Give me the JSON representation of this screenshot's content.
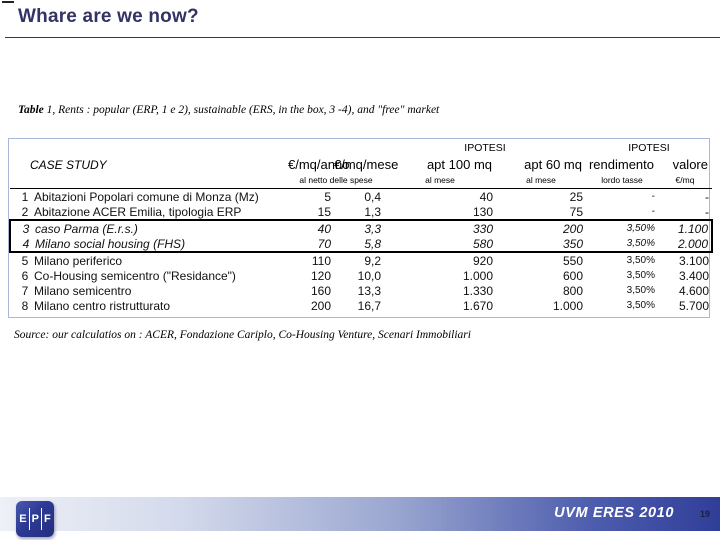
{
  "page": {
    "title": "Whare are we now?",
    "footer_label": "UVM ERES 2010",
    "page_number": "19",
    "logo_letters": {
      "l1": "E",
      "l2": "P",
      "l3": "F"
    },
    "colors": {
      "title_navy": "#333366",
      "table_border": "#aab8d8",
      "footer_dark_blue": "#303e99",
      "footer_light": "#eef0f7",
      "box_border": "#000000"
    }
  },
  "caption": {
    "prefix": "Table",
    "text": " 1, Rents : popular (ERP, 1 e 2), sustainable (ERS, in the box, 3 -4), and \"free\" market"
  },
  "source": "Source: our calculatios on : ACER, Fondazione Cariplo, Co-Housing Venture, Scenari Immobiliari",
  "table": {
    "group_headers": {
      "ipotesi1": "IPOTESI",
      "ipotesi2": "IPOTESI"
    },
    "columns": [
      "CASE STUDY",
      "€/mq/anno",
      "€/mq/mese",
      "apt 100 mq",
      "apt 60 mq",
      "rendimento",
      "valore"
    ],
    "sub_headers": {
      "spese": "al netto delle spese",
      "mese1": "al mese",
      "mese2": "al mese",
      "lordo": "lordo tasse",
      "mq": "€/mq"
    },
    "rows": [
      {
        "num": "1",
        "name": "Abitazioni Popolari comune di Monza (Mz)",
        "anno": "5",
        "mese": "0,4",
        "apt100": "40",
        "apt60": "25",
        "rend": "-",
        "valore": "-"
      },
      {
        "num": "2",
        "name": "Abitazione ACER Emilia, tipologia ERP",
        "anno": "15",
        "mese": "1,3",
        "apt100": "130",
        "apt60": "75",
        "rend": "-",
        "valore": "-"
      },
      {
        "num": "3",
        "name": "caso Parma (E.r.s.)",
        "anno": "40",
        "mese": "3,3",
        "apt100": "330",
        "apt60": "200",
        "rend": "3,50%",
        "valore": "1.100"
      },
      {
        "num": "4",
        "name": "Milano social housing (FHS)",
        "anno": "70",
        "mese": "5,8",
        "apt100": "580",
        "apt60": "350",
        "rend": "3,50%",
        "valore": "2.000"
      },
      {
        "num": "5",
        "name": "Milano periferico",
        "anno": "110",
        "mese": "9,2",
        "apt100": "920",
        "apt60": "550",
        "rend": "3,50%",
        "valore": "3.100"
      },
      {
        "num": "6",
        "name": "Co-Housing semicentro (\"Residance\")",
        "anno": "120",
        "mese": "10,0",
        "apt100": "1.000",
        "apt60": "600",
        "rend": "3,50%",
        "valore": "3.400"
      },
      {
        "num": "7",
        "name": "Milano semicentro",
        "anno": "160",
        "mese": "13,3",
        "apt100": "1.330",
        "apt60": "800",
        "rend": "3,50%",
        "valore": "4.600"
      },
      {
        "num": "8",
        "name": "Milano centro ristrutturato",
        "anno": "200",
        "mese": "16,7",
        "apt100": "1.670",
        "apt60": "1.000",
        "rend": "3,50%",
        "valore": "5.700"
      }
    ]
  }
}
